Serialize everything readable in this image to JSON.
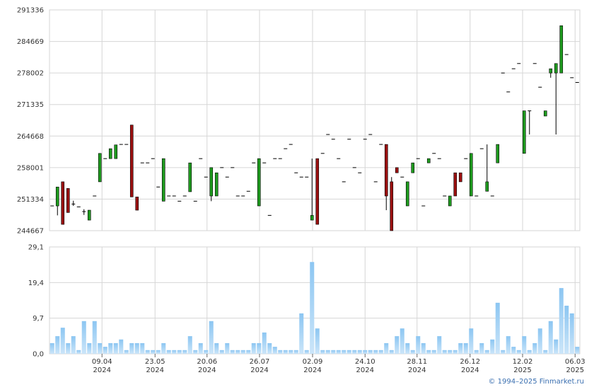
{
  "chart_data": [
    {
      "type": "candlestick",
      "up_color": "#1f9b1f",
      "down_color": "#9b1010",
      "wick_color": "#000000",
      "xlim": [
        0,
        100
      ],
      "ylim": [
        244667,
        291336
      ],
      "yticks": [
        244667,
        251334,
        258001,
        264668,
        271335,
        278002,
        284669,
        291336
      ],
      "grid": true,
      "ohlc": [
        [
          249900,
          249900,
          249900,
          249900
        ],
        [
          249900,
          253900,
          247900,
          253900
        ],
        [
          255000,
          255000,
          246000,
          246000
        ],
        [
          253600,
          253600,
          248500,
          248500
        ],
        [
          250300,
          251000,
          249900,
          250300
        ],
        [
          249700,
          249700,
          249700,
          249700
        ],
        [
          248700,
          249200,
          248000,
          248700
        ],
        [
          246900,
          249000,
          246900,
          249000
        ],
        [
          252000,
          252000,
          252000,
          252000
        ],
        [
          255000,
          261000,
          255000,
          261000
        ],
        [
          259900,
          259900,
          259900,
          259900
        ],
        [
          259900,
          262000,
          259900,
          262000
        ],
        [
          259900,
          262800,
          259900,
          262800
        ],
        [
          262900,
          262900,
          262900,
          262900
        ],
        [
          262900,
          262900,
          262900,
          262900
        ],
        [
          267000,
          267000,
          251800,
          251800
        ],
        [
          251800,
          251800,
          249000,
          249000
        ],
        [
          259000,
          259000,
          259000,
          259000
        ],
        [
          259000,
          259000,
          259000,
          259000
        ],
        [
          259900,
          259900,
          259900,
          259900
        ],
        [
          253900,
          253900,
          253900,
          253900
        ],
        [
          250900,
          259900,
          250900,
          259900
        ],
        [
          252000,
          252000,
          252000,
          252000
        ],
        [
          252000,
          252000,
          252000,
          252000
        ],
        [
          250900,
          250900,
          250900,
          250900
        ],
        [
          252000,
          252000,
          252000,
          252000
        ],
        [
          252900,
          259000,
          252900,
          259000
        ],
        [
          250900,
          250900,
          250900,
          250900
        ],
        [
          259900,
          259900,
          259900,
          259900
        ],
        [
          256000,
          256000,
          256000,
          256000
        ],
        [
          252000,
          258000,
          250900,
          258000
        ],
        [
          252000,
          256900,
          252000,
          256900
        ],
        [
          258000,
          258000,
          258000,
          258000
        ],
        [
          256000,
          256000,
          256000,
          256000
        ],
        [
          258000,
          258000,
          258000,
          258000
        ],
        [
          252000,
          252000,
          252000,
          252000
        ],
        [
          252000,
          252000,
          252000,
          252000
        ],
        [
          253000,
          253000,
          253000,
          253000
        ],
        [
          259000,
          259000,
          259000,
          259000
        ],
        [
          249900,
          259900,
          249900,
          259900
        ],
        [
          259000,
          259000,
          259000,
          259000
        ],
        [
          247900,
          247900,
          247900,
          247900
        ],
        [
          259900,
          259900,
          259900,
          259900
        ],
        [
          259900,
          259900,
          259900,
          259900
        ],
        [
          262000,
          262000,
          262000,
          262000
        ],
        [
          262900,
          262900,
          262900,
          262900
        ],
        [
          256900,
          256900,
          256900,
          256900
        ],
        [
          256000,
          256000,
          256000,
          256000
        ],
        [
          256000,
          256000,
          256000,
          256000
        ],
        [
          246900,
          259900,
          246900,
          247900
        ],
        [
          259900,
          259900,
          246000,
          246000
        ],
        [
          261000,
          261000,
          261000,
          261000
        ],
        [
          265000,
          265000,
          265000,
          265000
        ],
        [
          264000,
          264000,
          264000,
          264000
        ],
        [
          259900,
          259900,
          259900,
          259900
        ],
        [
          255000,
          255000,
          255000,
          255000
        ],
        [
          264000,
          264000,
          264000,
          264000
        ],
        [
          258000,
          258000,
          258000,
          258000
        ],
        [
          256900,
          256900,
          256900,
          256900
        ],
        [
          264000,
          264000,
          264000,
          264000
        ],
        [
          265000,
          265000,
          265000,
          265000
        ],
        [
          255000,
          255000,
          255000,
          255000
        ],
        [
          262900,
          262900,
          262900,
          262900
        ],
        [
          262900,
          262900,
          249000,
          252000
        ],
        [
          255000,
          256000,
          244667,
          244667
        ],
        [
          258000,
          258000,
          256900,
          256900
        ],
        [
          256000,
          256000,
          256000,
          256000
        ],
        [
          249900,
          255000,
          249900,
          255000
        ],
        [
          256900,
          259000,
          256900,
          259000
        ],
        [
          259900,
          259900,
          259900,
          259900
        ],
        [
          249900,
          249900,
          249900,
          249900
        ],
        [
          259000,
          259900,
          259000,
          259900
        ],
        [
          261000,
          261000,
          261000,
          261000
        ],
        [
          259900,
          259900,
          259900,
          259900
        ],
        [
          252000,
          252000,
          252000,
          252000
        ],
        [
          249900,
          252000,
          249900,
          252000
        ],
        [
          256900,
          256900,
          252000,
          252000
        ],
        [
          256900,
          256900,
          255000,
          255000
        ],
        [
          259900,
          259900,
          259900,
          259900
        ],
        [
          252000,
          261000,
          252000,
          261000
        ],
        [
          252000,
          252000,
          252000,
          252000
        ],
        [
          262000,
          262000,
          262000,
          262000
        ],
        [
          253000,
          262900,
          253000,
          255000
        ],
        [
          252000,
          252000,
          252000,
          252000
        ],
        [
          259000,
          262900,
          259000,
          262900
        ],
        [
          278000,
          278000,
          278000,
          278000
        ],
        [
          274000,
          274000,
          274000,
          274000
        ],
        [
          278900,
          278900,
          278900,
          278900
        ],
        [
          280000,
          280000,
          280000,
          280000
        ],
        [
          261000,
          270000,
          261000,
          270000
        ],
        [
          270000,
          270000,
          265000,
          270000
        ],
        [
          280000,
          280000,
          280000,
          280000
        ],
        [
          275000,
          275000,
          275000,
          275000
        ],
        [
          268900,
          270000,
          268900,
          270000
        ],
        [
          278000,
          278900,
          277000,
          278900
        ],
        [
          278000,
          280000,
          265000,
          280000
        ],
        [
          278000,
          288000,
          278000,
          288000
        ],
        [
          281900,
          281900,
          281900,
          281900
        ],
        [
          277000,
          277000,
          277000,
          277000
        ],
        [
          276000,
          276000,
          276000,
          276000
        ]
      ]
    },
    {
      "type": "bar",
      "color": "#8cc6f2",
      "xlim": [
        0,
        100
      ],
      "ylim": [
        0,
        29.1
      ],
      "yticks": [
        {
          "value": 0,
          "label": "0,0"
        },
        {
          "value": 9.7,
          "label": "9,7"
        },
        {
          "value": 19.4,
          "label": "19,4"
        },
        {
          "value": 29.1,
          "label": "29,1"
        }
      ],
      "xticks": [
        {
          "value": 9.9,
          "label": "09.04\n2024"
        },
        {
          "value": 19.9,
          "label": "23.05\n2024"
        },
        {
          "value": 29.7,
          "label": "20.06\n2024"
        },
        {
          "value": 39.6,
          "label": "26.07\n2024"
        },
        {
          "value": 49.6,
          "label": "02.09\n2024"
        },
        {
          "value": 59.5,
          "label": "24.10\n2024"
        },
        {
          "value": 69.3,
          "label": "28.11\n2024"
        },
        {
          "value": 79.3,
          "label": "26.12\n2024"
        },
        {
          "value": 89.2,
          "label": "12.02\n2025"
        },
        {
          "value": 99.1,
          "label": "06.03\n2025"
        }
      ],
      "grid": true,
      "values": [
        2.9,
        4.8,
        7.1,
        2.9,
        4.8,
        1.0,
        8.9,
        2.9,
        8.9,
        2.9,
        1.9,
        2.9,
        2.9,
        3.9,
        1.0,
        2.9,
        2.9,
        2.9,
        1.0,
        1.0,
        1.0,
        2.9,
        1.0,
        1.0,
        1.0,
        1.0,
        4.8,
        1.0,
        2.9,
        1.0,
        8.9,
        2.9,
        1.0,
        2.9,
        1.0,
        1.0,
        1.0,
        1.0,
        2.9,
        2.9,
        5.8,
        2.9,
        1.9,
        1.0,
        1.0,
        1.0,
        1.0,
        11.0,
        1.0,
        25.0,
        6.9,
        1.0,
        1.0,
        1.0,
        1.0,
        1.0,
        1.0,
        1.0,
        1.0,
        1.0,
        1.0,
        1.0,
        1.0,
        2.9,
        1.0,
        4.8,
        6.9,
        2.9,
        1.0,
        4.8,
        2.9,
        1.0,
        1.0,
        4.8,
        1.0,
        1.0,
        1.0,
        2.9,
        2.9,
        6.9,
        1.0,
        2.9,
        1.0,
        3.9,
        13.9,
        1.0,
        4.8,
        1.9,
        1.0,
        4.8,
        1.0,
        2.9,
        6.9,
        1.0,
        8.9,
        3.9,
        17.9,
        13.1,
        11.0,
        1.9
      ]
    },
    {
      "type": "note",
      "text": "© 1994–2025 Finmarket.ru"
    }
  ]
}
